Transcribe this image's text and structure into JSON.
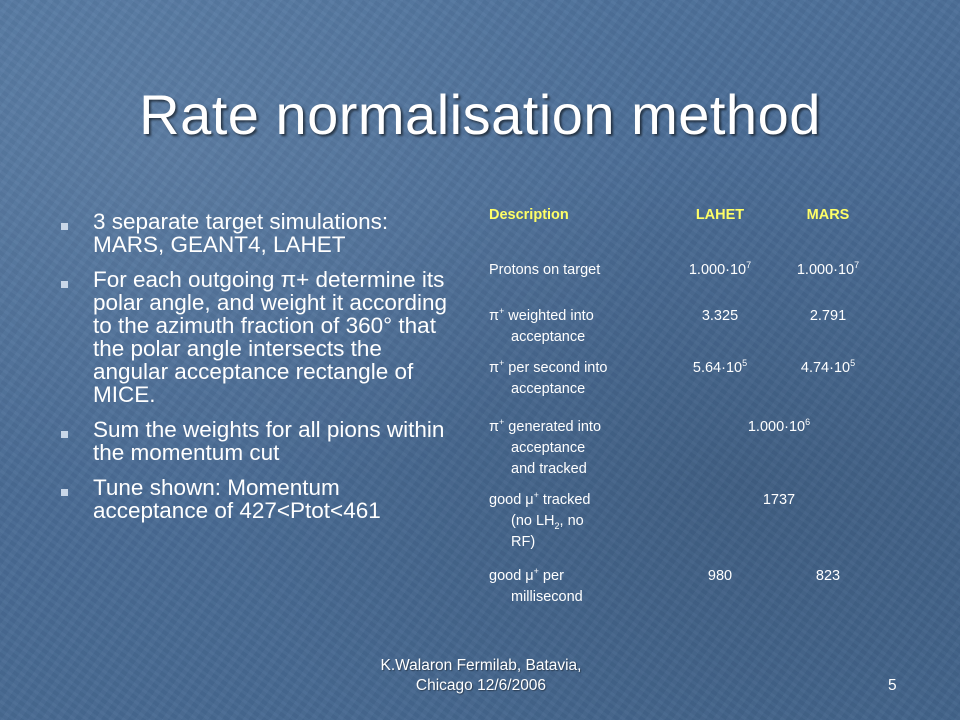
{
  "slide": {
    "title": "Rate normalisation method",
    "bullets": [
      "3 separate target simulations: MARS, GEANT4, LAHET",
      "For each outgoing π+ determine its polar angle, and weight it according to the azimuth fraction of 360° that the polar angle intersects the angular acceptance rectangle of MICE.",
      "Sum the weights for all pions within the momentum cut",
      "Tune shown: Momentum acceptance of 427<Ptot<461"
    ],
    "footer": {
      "line1": "K.Walaron Fermilab, Batavia,",
      "line2": "Chicago 12/6/2006"
    },
    "page_number": "5"
  },
  "table": {
    "headers": {
      "description": "Description",
      "lahet": "LAHET",
      "mars": "MARS"
    },
    "protons": {
      "label": "Protons on target",
      "lahet_mant": "1.000·10",
      "lahet_exp": "7",
      "mars_mant": "1.000·10",
      "mars_exp": "7"
    },
    "weighted": {
      "pi": "π",
      "charge": "+",
      "label1": " weighted into",
      "label2": "acceptance",
      "lahet": "3.325",
      "mars": "2.791"
    },
    "per_second": {
      "pi": "π",
      "charge": "+",
      "label1": " per second into",
      "label2": "acceptance",
      "lahet_mant": "5.64·10",
      "lahet_exp": "5",
      "mars_mant": "4.74·10",
      "mars_exp": "5"
    },
    "generated": {
      "pi": "π",
      "charge": "+",
      "label1": " generated into",
      "label2": "acceptance",
      "label3": "and tracked",
      "value_mant": "1.000·10",
      "value_exp": "6"
    },
    "good_tracked": {
      "label1a": "good μ",
      "charge": "+",
      "label1b": " tracked",
      "label2a": "(no LH",
      "sub": "2",
      "label2b": ", no",
      "label3": "RF)",
      "value": "1737"
    },
    "good_per_ms": {
      "label1a": "good μ",
      "charge": "+",
      "label1b": " per",
      "label2": "millisecond",
      "lahet": "980",
      "mars": "823"
    }
  }
}
